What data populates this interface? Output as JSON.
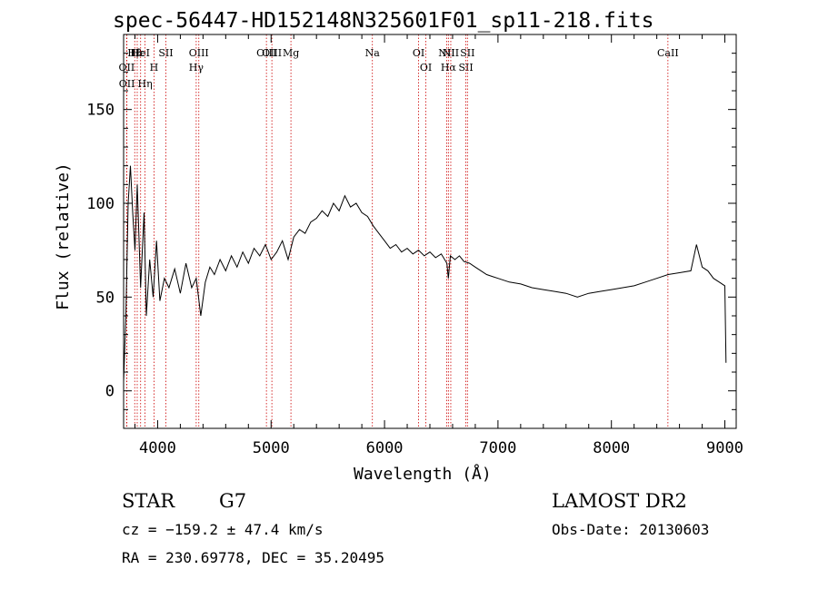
{
  "chart_data": {
    "type": "line",
    "title": "spec-56447-HD152148N325601F01_sp11-218.fits",
    "xlabel": "Wavelength (Å)",
    "ylabel": "Flux (relative)",
    "xlim": [
      3700,
      9100
    ],
    "ylim": [
      -20,
      190
    ],
    "x_ticks": [
      4000,
      5000,
      6000,
      7000,
      8000,
      9000
    ],
    "x_tick_labels": [
      "4000",
      "5000",
      "6000",
      "7000",
      "8000",
      "9000"
    ],
    "y_ticks": [
      0,
      50,
      100,
      150
    ],
    "y_tick_labels": [
      "0",
      "50",
      "100",
      "150"
    ],
    "series": [
      {
        "values": [
          [
            3700,
            5
          ],
          [
            3720,
            40
          ],
          [
            3740,
            100
          ],
          [
            3760,
            120
          ],
          [
            3780,
            95
          ],
          [
            3800,
            75
          ],
          [
            3820,
            110
          ],
          [
            3850,
            55
          ],
          [
            3880,
            95
          ],
          [
            3900,
            40
          ],
          [
            3930,
            70
          ],
          [
            3960,
            50
          ],
          [
            3990,
            80
          ],
          [
            4020,
            48
          ],
          [
            4060,
            60
          ],
          [
            4100,
            55
          ],
          [
            4150,
            65
          ],
          [
            4200,
            52
          ],
          [
            4250,
            68
          ],
          [
            4300,
            55
          ],
          [
            4340,
            60
          ],
          [
            4380,
            40
          ],
          [
            4420,
            58
          ],
          [
            4460,
            66
          ],
          [
            4500,
            62
          ],
          [
            4550,
            70
          ],
          [
            4600,
            64
          ],
          [
            4650,
            72
          ],
          [
            4700,
            66
          ],
          [
            4750,
            74
          ],
          [
            4800,
            68
          ],
          [
            4850,
            76
          ],
          [
            4900,
            72
          ],
          [
            4950,
            78
          ],
          [
            5000,
            70
          ],
          [
            5050,
            74
          ],
          [
            5100,
            80
          ],
          [
            5150,
            70
          ],
          [
            5200,
            82
          ],
          [
            5250,
            86
          ],
          [
            5300,
            84
          ],
          [
            5350,
            90
          ],
          [
            5400,
            92
          ],
          [
            5450,
            96
          ],
          [
            5500,
            93
          ],
          [
            5550,
            100
          ],
          [
            5600,
            96
          ],
          [
            5650,
            104
          ],
          [
            5700,
            98
          ],
          [
            5750,
            100
          ],
          [
            5800,
            95
          ],
          [
            5850,
            93
          ],
          [
            5900,
            88
          ],
          [
            5950,
            84
          ],
          [
            6000,
            80
          ],
          [
            6050,
            76
          ],
          [
            6100,
            78
          ],
          [
            6150,
            74
          ],
          [
            6200,
            76
          ],
          [
            6250,
            73
          ],
          [
            6300,
            75
          ],
          [
            6350,
            72
          ],
          [
            6400,
            74
          ],
          [
            6450,
            71
          ],
          [
            6500,
            73
          ],
          [
            6550,
            68
          ],
          [
            6563,
            60
          ],
          [
            6580,
            72
          ],
          [
            6620,
            70
          ],
          [
            6660,
            72
          ],
          [
            6700,
            69
          ],
          [
            6750,
            68
          ],
          [
            6800,
            66
          ],
          [
            6850,
            64
          ],
          [
            6900,
            62
          ],
          [
            6950,
            61
          ],
          [
            7000,
            60
          ],
          [
            7100,
            58
          ],
          [
            7200,
            57
          ],
          [
            7300,
            55
          ],
          [
            7400,
            54
          ],
          [
            7500,
            53
          ],
          [
            7600,
            52
          ],
          [
            7700,
            50
          ],
          [
            7800,
            52
          ],
          [
            7900,
            53
          ],
          [
            8000,
            54
          ],
          [
            8100,
            55
          ],
          [
            8200,
            56
          ],
          [
            8300,
            58
          ],
          [
            8400,
            60
          ],
          [
            8500,
            62
          ],
          [
            8600,
            63
          ],
          [
            8700,
            64
          ],
          [
            8750,
            78
          ],
          [
            8800,
            66
          ],
          [
            8850,
            64
          ],
          [
            8900,
            60
          ],
          [
            8950,
            58
          ],
          [
            9000,
            56
          ],
          [
            9010,
            15
          ]
        ]
      }
    ],
    "lines": [
      {
        "label": "Hβ",
        "x": 3798
      },
      {
        "label": "OII",
        "x": 3727
      },
      {
        "label": "OII",
        "x": 3729
      },
      {
        "label": "Hε",
        "x": 3820
      },
      {
        "label": "HeI",
        "x": 3850
      },
      {
        "label": "H",
        "x": 3968
      },
      {
        "label": "Hη",
        "x": 3889
      },
      {
        "label": "SII",
        "x": 4072
      },
      {
        "label": "OIII",
        "x": 4363
      },
      {
        "label": "Hγ",
        "x": 4340
      },
      {
        "label": "OIII",
        "x": 4959
      },
      {
        "label": "OIII",
        "x": 5007
      },
      {
        "label": "Mg",
        "x": 5175
      },
      {
        "label": "Na",
        "x": 5893
      },
      {
        "label": "OI",
        "x": 6300
      },
      {
        "label": "OI",
        "x": 6364
      },
      {
        "label": "NII",
        "x": 6548
      },
      {
        "label": "Hα",
        "x": 6563
      },
      {
        "label": "NII",
        "x": 6584
      },
      {
        "label": "SII",
        "x": 6717
      },
      {
        "label": "SII",
        "x": 6731
      },
      {
        "label": "CaII",
        "x": 8498
      }
    ],
    "grid": false,
    "line_color": "#000000",
    "marker_line_color": "#cc0000",
    "axis_color": "#000000"
  },
  "info": {
    "class": "STAR",
    "subclass": "G7",
    "survey": "LAMOST DR2",
    "cz": "cz = −159.2 ± 47.4 km/s",
    "obs_date": "Obs-Date: 20130603",
    "coords": "RA = 230.69778, DEC =  35.20495"
  }
}
